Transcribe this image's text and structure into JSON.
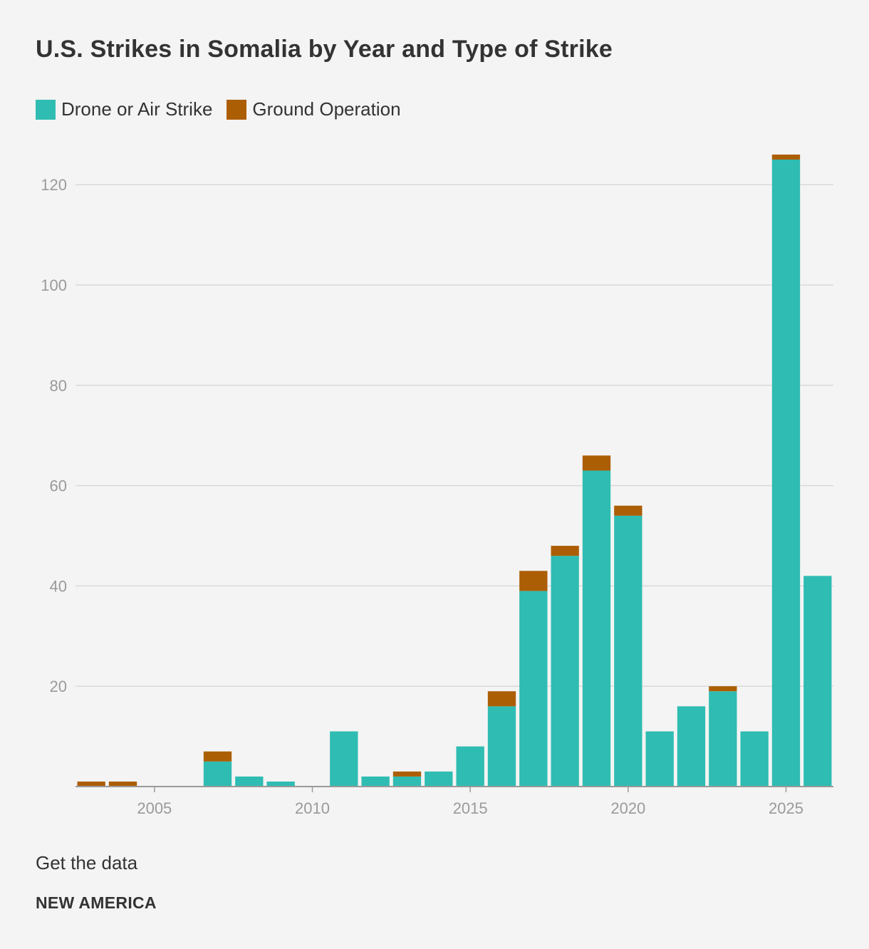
{
  "chart_data": {
    "type": "bar",
    "stacked": true,
    "title": "U.S. Strikes in Somalia by Year and Type of Strike",
    "xlabel": "",
    "ylabel": "",
    "categories": [
      "2003",
      "2004",
      "2005",
      "2006",
      "2007",
      "2008",
      "2009",
      "2010",
      "2011",
      "2012",
      "2013",
      "2014",
      "2015",
      "2016",
      "2017",
      "2018",
      "2019",
      "2020",
      "2021",
      "2022",
      "2023",
      "2024",
      "2025",
      "2026"
    ],
    "series": [
      {
        "name": "Drone or Air Strike",
        "color": "#2fbcb2",
        "values": [
          0,
          0,
          0,
          0,
          5,
          2,
          1,
          0,
          11,
          2,
          2,
          3,
          8,
          16,
          39,
          46,
          63,
          54,
          11,
          16,
          19,
          11,
          125,
          42
        ]
      },
      {
        "name": "Ground Operation",
        "color": "#ac5e05",
        "values": [
          1,
          1,
          0,
          0,
          2,
          0,
          0,
          0,
          0,
          0,
          1,
          0,
          0,
          3,
          4,
          2,
          3,
          2,
          0,
          0,
          1,
          0,
          1,
          0
        ]
      }
    ],
    "ylim": [
      0,
      126
    ],
    "yticks": [
      20,
      40,
      60,
      80,
      100,
      120
    ],
    "xticks": [
      "2005",
      "2010",
      "2015",
      "2020",
      "2025"
    ],
    "legend": [
      "Drone or Air Strike",
      "Ground Operation"
    ],
    "legend_position": "top-left",
    "grid": true
  },
  "footer": {
    "link_label": "Get the data",
    "brand": "NEW AMERICA"
  }
}
